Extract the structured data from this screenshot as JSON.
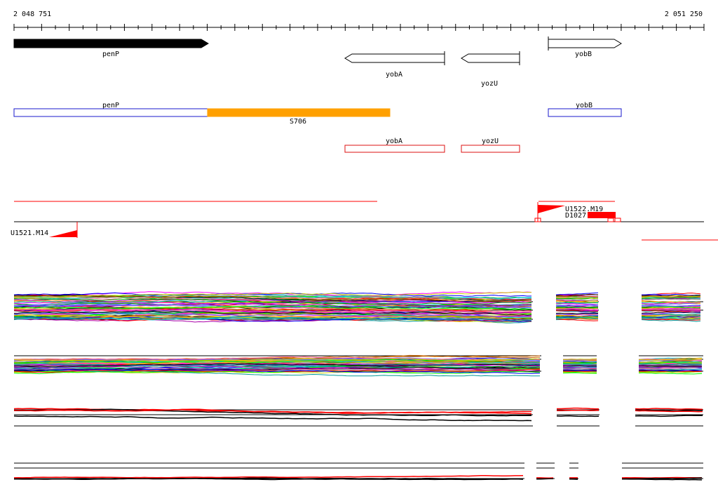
{
  "ruler": {
    "start_label": "2 048 751",
    "end_label": "2 051 250"
  },
  "genes": {
    "penP": "penP",
    "yobA": "yobA",
    "yozU": "yozU",
    "yobB": "yobB"
  },
  "features": {
    "penP": "penP",
    "S706": "S706",
    "yobB": "yobB",
    "yobA": "yobA",
    "yozU": "yozU"
  },
  "markers": {
    "U1521_M14": "U1521.M14",
    "U1522_M19": "U1522.M19",
    "D1027": "D1027"
  },
  "colors": {
    "gene_filled": "#000000",
    "feature_blue": "#1a1acc",
    "feature_orange": "#ffa000",
    "feature_red": "#dd1111",
    "marker_red": "#ff0000"
  }
}
